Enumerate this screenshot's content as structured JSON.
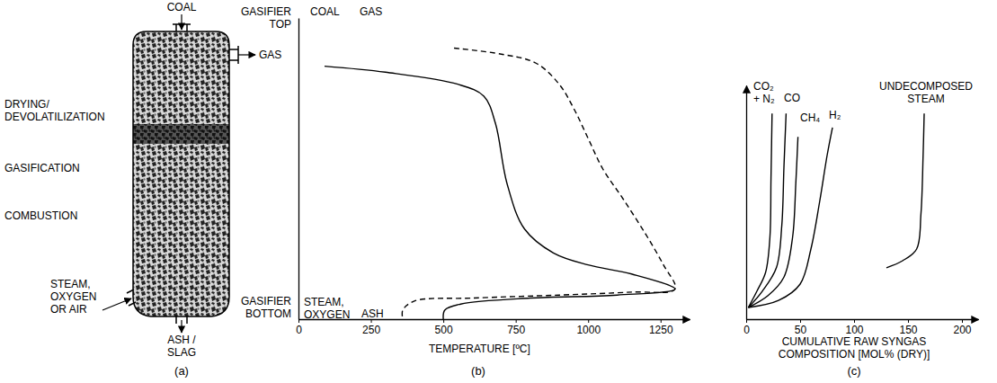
{
  "diagram": {
    "caption": "(a)",
    "feed": "COAL",
    "gas": "GAS",
    "zones": [
      "DRYING/DEVOLATILIZATION",
      "GASIFICATION",
      "COMBUSTION"
    ],
    "inlet": "STEAM, OXYGEN OR AIR",
    "outlet": "ASH / SLAG"
  },
  "chart_data": [
    {
      "type": "line",
      "caption": "(b)",
      "x_label": "TEMPERATURE [ºC]",
      "y_label_top": "GASIFIER TOP",
      "y_label_bottom": "GASIFIER BOTTOM",
      "annotations": [
        "STEAM, OXYGEN",
        "ASH"
      ],
      "xlim": [
        0,
        1350
      ],
      "xticks": [
        0,
        250,
        500,
        750,
        1000,
        1250
      ],
      "ylim": [
        0,
        100
      ],
      "yticks": [],
      "tick_labels": "x",
      "series": [
        {
          "name": "COAL",
          "color": "#000000",
          "line_style": "solid",
          "x": [
            90,
            300,
            550,
            640,
            680,
            720,
            780,
            880,
            1000,
            1150,
            1300,
            1100,
            800,
            560,
            505,
            500
          ],
          "values": [
            84,
            82,
            78,
            74,
            65,
            45,
            30,
            22,
            18,
            15,
            10,
            8,
            7,
            5,
            3,
            0
          ]
        },
        {
          "name": "GAS",
          "color": "#000000",
          "line_style": "dashed",
          "x": [
            537,
            700,
            820,
            900,
            950,
            1000,
            1050,
            1120,
            1200,
            1260,
            1300,
            1150,
            900,
            600,
            400,
            360,
            360
          ],
          "values": [
            90,
            88,
            85,
            78,
            70,
            60,
            50,
            40,
            28,
            18,
            10,
            9,
            8,
            7,
            6,
            3,
            0
          ]
        }
      ]
    },
    {
      "type": "line",
      "caption": "(c)",
      "x_label": "CUMULATIVE RAW SYNGAS COMPOSITION [MOL% (DRY)]",
      "xlim": [
        0,
        215
      ],
      "xticks": [
        0,
        50,
        100,
        150,
        200
      ],
      "ylim": [
        0,
        100
      ],
      "yticks": [],
      "tick_labels": "x",
      "series": [
        {
          "name": "CO₂ + N₂",
          "color": "#000000",
          "line_style": "solid",
          "x": [
            2,
            10,
            18,
            22,
            23,
            24
          ],
          "values": [
            5,
            12,
            20,
            35,
            60,
            88
          ]
        },
        {
          "name": "CO",
          "color": "#000000",
          "line_style": "solid",
          "x": [
            2,
            15,
            28,
            33,
            35,
            37
          ],
          "values": [
            5,
            12,
            22,
            40,
            65,
            88
          ]
        },
        {
          "name": "CH₄",
          "color": "#000000",
          "line_style": "solid",
          "x": [
            2,
            20,
            35,
            43,
            46,
            48
          ],
          "values": [
            5,
            10,
            18,
            35,
            58,
            78
          ]
        },
        {
          "name": "H₂",
          "color": "#000000",
          "line_style": "solid",
          "x": [
            2,
            30,
            50,
            60,
            68,
            75,
            80
          ],
          "values": [
            5,
            8,
            15,
            30,
            50,
            70,
            82
          ]
        },
        {
          "name": "UNDECOMPOSED STEAM",
          "color": "#000000",
          "line_style": "solid",
          "x": [
            130,
            145,
            158,
            162,
            164,
            165
          ],
          "values": [
            22,
            25,
            30,
            45,
            70,
            88
          ]
        }
      ]
    }
  ]
}
